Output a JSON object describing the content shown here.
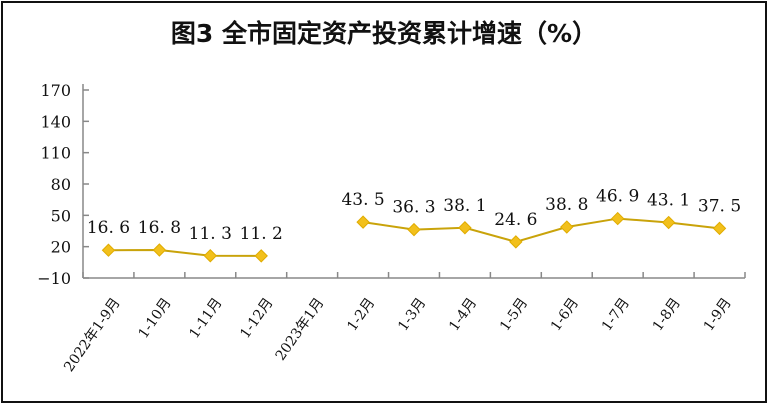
{
  "chart_data": {
    "type": "line",
    "title": "图3  全市固定资产投资累计增速（%）",
    "categories": [
      "2022年1-9月",
      "1-10月",
      "1-11月",
      "1-12月",
      "2023年1月",
      "1-2月",
      "1-3月",
      "1-4月",
      "1-5月",
      "1-6月",
      "1-7月",
      "1-8月",
      "1-9月"
    ],
    "series": [
      {
        "values": [
          16.6,
          16.8,
          11.3,
          11.2,
          null,
          43.5,
          36.3,
          38.1,
          24.6,
          38.8,
          46.9,
          43.1,
          37.5
        ]
      }
    ],
    "data_labels": [
      "16. 6",
      "16. 8",
      "11. 3",
      "11. 2",
      "",
      "43. 5",
      "36. 3",
      "38. 1",
      "24. 6",
      "38. 8",
      "46. 9",
      "43. 1",
      "37. 5"
    ],
    "yticks": [
      -10,
      20,
      50,
      80,
      110,
      140,
      170
    ],
    "ylim": [
      -10,
      170
    ],
    "grid": false,
    "colors": {
      "line": "#c9a30a",
      "marker": "#f2c01c"
    }
  }
}
